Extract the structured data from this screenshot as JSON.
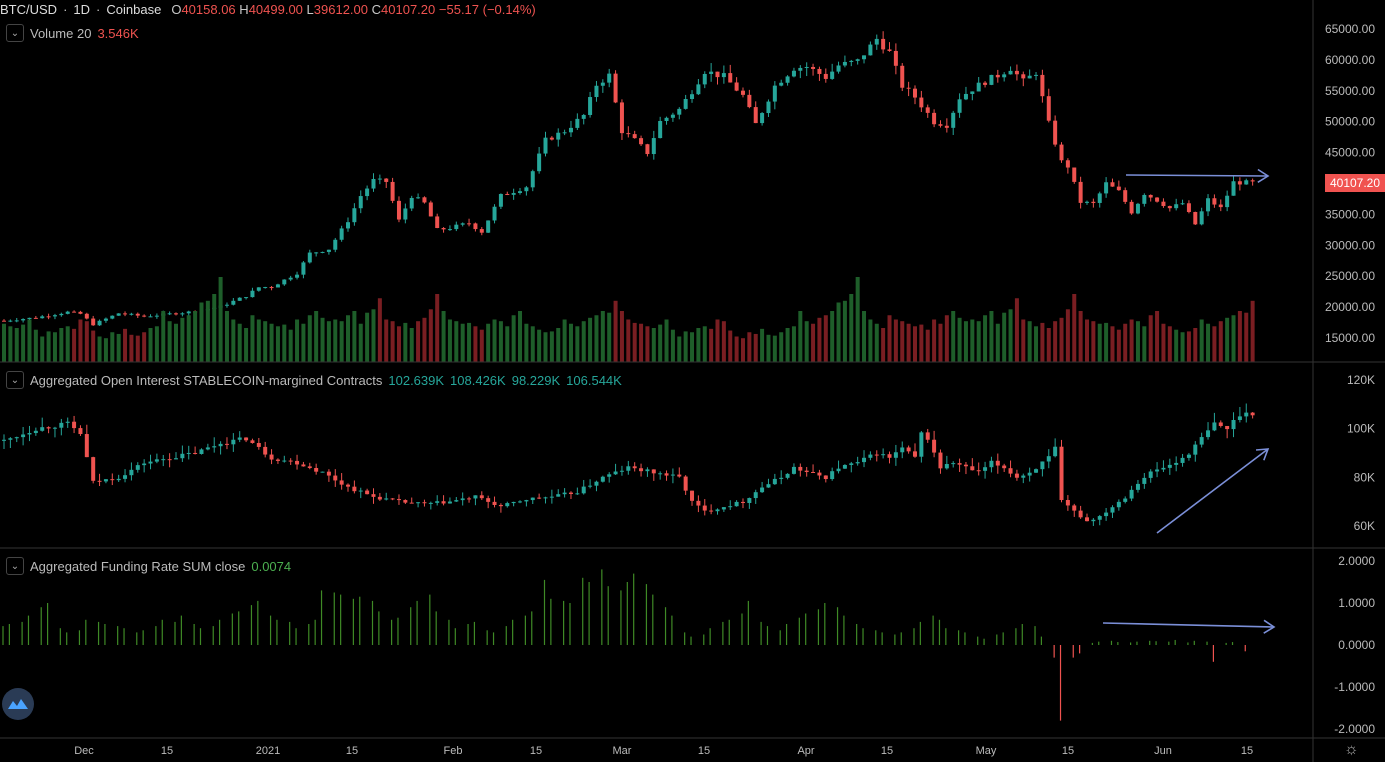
{
  "header": {
    "symbol": "BTC/USD",
    "sep1": "·",
    "interval": "1D",
    "sep2": "·",
    "exchange": "Coinbase",
    "o_label": "O",
    "o_value": "40158.06",
    "h_label": "H",
    "h_value": "40499.00",
    "l_label": "L",
    "l_value": "39612.00",
    "c_label": "C",
    "c_value": "40107.20",
    "change": "−55.17 (−0.14%)"
  },
  "volume_legend": {
    "label": "Volume 20",
    "value": "3.546K"
  },
  "oi_legend": {
    "label": "Aggregated Open Interest STABLECOIN-margined Contracts",
    "values": [
      "102.639K",
      "108.426K",
      "98.229K",
      "106.544K"
    ]
  },
  "funding_legend": {
    "label": "Aggregated Funding Rate SUM close",
    "value": "0.0074"
  },
  "last_price_tag": "40107.20",
  "colors": {
    "up": "#26a69a",
    "down": "#ef5350",
    "vol_up": "#1e5e2a",
    "vol_down": "#7a1e22",
    "funding": "#3f8a26",
    "arrow": "#7b8fd8",
    "price_tag": "#f05350"
  },
  "icons": {
    "collapse": "chevron-down-icon",
    "settings": "gear-icon",
    "logo": "wave-logo-icon"
  },
  "chart_data": [
    {
      "type": "candlestick",
      "title": "BTC/USD · 1D · Coinbase",
      "x": [
        "Dec",
        "15",
        "2021",
        "15",
        "Feb",
        "15",
        "Mar",
        "15",
        "Apr",
        "15",
        "May",
        "15",
        "Jun",
        "15"
      ],
      "y_ticks": [
        "65000.00",
        "60000.00",
        "55000.00",
        "50000.00",
        "45000.00",
        "40000.00",
        "35000.00",
        "30000.00",
        "25000.00",
        "20000.00",
        "15000.00"
      ],
      "ylim": [
        13000,
        70000
      ],
      "close_path": [
        [
          0,
          17800
        ],
        [
          5,
          18300
        ],
        [
          10,
          19200
        ],
        [
          12,
          18900
        ],
        [
          14,
          17200
        ],
        [
          18,
          19000
        ],
        [
          22,
          18500
        ],
        [
          26,
          18900
        ],
        [
          30,
          19300
        ],
        [
          34,
          20100
        ],
        [
          38,
          21800
        ],
        [
          40,
          23200
        ],
        [
          42,
          23300
        ],
        [
          46,
          25500
        ],
        [
          48,
          28700
        ],
        [
          51,
          29400
        ],
        [
          54,
          34000
        ],
        [
          56,
          38000
        ],
        [
          58,
          40500
        ],
        [
          60,
          40300
        ],
        [
          62,
          34000
        ],
        [
          64,
          38000
        ],
        [
          66,
          36800
        ],
        [
          68,
          32500
        ],
        [
          70,
          32800
        ],
        [
          73,
          33600
        ],
        [
          75,
          32200
        ],
        [
          78,
          38000
        ],
        [
          82,
          39500
        ],
        [
          85,
          47000
        ],
        [
          88,
          48500
        ],
        [
          91,
          51000
        ],
        [
          93,
          56000
        ],
        [
          95,
          57500
        ],
        [
          97,
          48500
        ],
        [
          99,
          47000
        ],
        [
          101,
          45000
        ],
        [
          103,
          50000
        ],
        [
          106,
          52000
        ],
        [
          108,
          55000
        ],
        [
          110,
          58200
        ],
        [
          113,
          57300
        ],
        [
          116,
          54200
        ],
        [
          118,
          49600
        ],
        [
          121,
          55800
        ],
        [
          124,
          58700
        ],
        [
          126,
          58900
        ],
        [
          129,
          57200
        ],
        [
          131,
          59100
        ],
        [
          134,
          59800
        ],
        [
          137,
          63400
        ],
        [
          139,
          61200
        ],
        [
          141,
          55800
        ],
        [
          143,
          54000
        ],
        [
          146,
          50000
        ],
        [
          148,
          49500
        ],
        [
          150,
          53900
        ],
        [
          152,
          55300
        ],
        [
          154,
          56500
        ],
        [
          156,
          57500
        ],
        [
          158,
          58700
        ],
        [
          160,
          56500
        ],
        [
          162,
          58000
        ],
        [
          164,
          49700
        ],
        [
          166,
          43500
        ],
        [
          167,
          42800
        ],
        [
          169,
          37000
        ],
        [
          171,
          36700
        ],
        [
          173,
          40000
        ],
        [
          175,
          38700
        ],
        [
          177,
          35400
        ],
        [
          179,
          38400
        ],
        [
          181,
          37300
        ],
        [
          183,
          36000
        ],
        [
          185,
          36800
        ],
        [
          187,
          33400
        ],
        [
          189,
          37400
        ],
        [
          191,
          36000
        ],
        [
          193,
          40200
        ],
        [
          196,
          40100
        ]
      ]
    },
    {
      "type": "bar",
      "title": "Volume 20",
      "y_range": "relative",
      "values": [
        0.45,
        0.42,
        0.4,
        0.44,
        0.5,
        0.38,
        0.3,
        0.36,
        0.35,
        0.4,
        0.42,
        0.39,
        0.5,
        0.48,
        0.37,
        0.3,
        0.28,
        0.35,
        0.33,
        0.39,
        0.32,
        0.31,
        0.35,
        0.4,
        0.42,
        0.6,
        0.48,
        0.45,
        0.52,
        0.55,
        0.6,
        0.7,
        0.72,
        0.8,
        1.0,
        0.6,
        0.5,
        0.45,
        0.4,
        0.55,
        0.5,
        0.48,
        0.45,
        0.42,
        0.44,
        0.38,
        0.5,
        0.45,
        0.55,
        0.6,
        0.52,
        0.48,
        0.5,
        0.48,
        0.55,
        0.6,
        0.45,
        0.58,
        0.62,
        0.75,
        0.5,
        0.48,
        0.42,
        0.46,
        0.4,
        0.48,
        0.52,
        0.62,
        0.8,
        0.6,
        0.5,
        0.48,
        0.45,
        0.46,
        0.42,
        0.38,
        0.45,
        0.5,
        0.48,
        0.42,
        0.55,
        0.6,
        0.45,
        0.42,
        0.38,
        0.35,
        0.36,
        0.4,
        0.5,
        0.45,
        0.42,
        0.48,
        0.52,
        0.55,
        0.6,
        0.58,
        0.72,
        0.6,
        0.5,
        0.46
      ]
    },
    {
      "type": "candlestick",
      "title": "Aggregated Open Interest STABLECOIN-margined Contracts",
      "y_ticks": [
        "120K",
        "100K",
        "80K",
        "60K"
      ],
      "ylim": [
        50000,
        125000
      ],
      "close_path": [
        [
          0,
          95000
        ],
        [
          5,
          100000
        ],
        [
          10,
          102000
        ],
        [
          12,
          98000
        ],
        [
          14,
          78000
        ],
        [
          18,
          80000
        ],
        [
          22,
          86000
        ],
        [
          26,
          88000
        ],
        [
          30,
          90000
        ],
        [
          34,
          94000
        ],
        [
          38,
          96000
        ],
        [
          42,
          88000
        ],
        [
          46,
          86000
        ],
        [
          50,
          82000
        ],
        [
          54,
          76000
        ],
        [
          58,
          72000
        ],
        [
          62,
          70000
        ],
        [
          66,
          69000
        ],
        [
          70,
          70000
        ],
        [
          74,
          72000
        ],
        [
          78,
          68000
        ],
        [
          82,
          71000
        ],
        [
          86,
          72000
        ],
        [
          90,
          74000
        ],
        [
          94,
          80000
        ],
        [
          98,
          84000
        ],
        [
          102,
          82000
        ],
        [
          106,
          80000
        ],
        [
          108,
          70000
        ],
        [
          110,
          66000
        ],
        [
          113,
          68000
        ],
        [
          116,
          70000
        ],
        [
          119,
          76000
        ],
        [
          122,
          80000
        ],
        [
          124,
          84000
        ],
        [
          126,
          82000
        ],
        [
          129,
          80000
        ],
        [
          131,
          84000
        ],
        [
          134,
          86000
        ],
        [
          137,
          90000
        ],
        [
          139,
          88000
        ],
        [
          141,
          92000
        ],
        [
          143,
          88000
        ],
        [
          144,
          98000
        ],
        [
          145,
          96000
        ],
        [
          147,
          84000
        ],
        [
          149,
          86000
        ],
        [
          151,
          84000
        ],
        [
          153,
          82000
        ],
        [
          155,
          86000
        ],
        [
          157,
          84000
        ],
        [
          159,
          80000
        ],
        [
          161,
          82000
        ],
        [
          163,
          86000
        ],
        [
          164,
          88000
        ],
        [
          165,
          92000
        ],
        [
          166,
          70000
        ],
        [
          168,
          66000
        ],
        [
          170,
          62000
        ],
        [
          172,
          64000
        ],
        [
          174,
          68000
        ],
        [
          176,
          72000
        ],
        [
          178,
          78000
        ],
        [
          180,
          82000
        ],
        [
          182,
          84000
        ],
        [
          184,
          86000
        ],
        [
          186,
          90000
        ],
        [
          188,
          96000
        ],
        [
          190,
          102000
        ],
        [
          192,
          100000
        ],
        [
          194,
          106000
        ],
        [
          196,
          106544
        ]
      ]
    },
    {
      "type": "bar",
      "title": "Aggregated Funding Rate SUM close",
      "y_ticks": [
        "2.0000",
        "1.0000",
        "0.0000",
        "-1.0000",
        "-2.0000"
      ],
      "ylim": [
        -2.1,
        2.1
      ],
      "values_sketch": [
        0.45,
        0.5,
        0.55,
        0.7,
        0.9,
        1.0,
        0.4,
        0.3,
        0.35,
        0.6,
        0.55,
        0.5,
        0.45,
        0.4,
        0.3,
        0.35,
        0.45,
        0.6,
        0.55,
        0.7,
        0.5,
        0.4,
        0.45,
        0.6,
        0.75,
        0.8,
        0.95,
        1.05,
        0.7,
        0.6,
        0.55,
        0.4,
        0.5,
        0.6,
        1.3,
        1.25,
        1.2,
        1.1,
        1.15,
        1.05,
        0.8,
        0.6,
        0.65,
        0.9,
        1.05,
        1.2,
        0.8,
        0.6,
        0.4,
        0.5,
        0.55,
        0.35,
        0.3,
        0.45,
        0.6,
        0.7,
        0.8,
        1.55,
        1.1,
        1.05,
        1.0,
        1.6,
        1.5,
        1.8,
        1.4,
        1.3,
        1.5,
        1.7,
        1.45,
        1.2,
        0.9,
        0.7,
        0.3,
        0.2,
        0.25,
        0.4,
        0.55,
        0.6,
        0.75,
        1.05,
        0.55,
        0.45,
        0.35,
        0.5,
        0.65,
        0.75,
        0.85,
        1.0,
        0.9,
        0.7,
        0.5,
        0.4,
        0.35,
        0.3,
        0.25,
        0.3,
        0.4,
        0.55,
        0.7,
        0.6,
        0.4,
        0.35,
        0.3,
        0.2,
        0.15,
        0.25,
        0.3,
        0.4,
        0.5,
        0.45,
        0.2,
        -0.3,
        -1.8,
        -0.3,
        -0.2,
        0.05,
        0.08,
        0.1,
        0.07,
        0.06,
        0.08,
        0.1,
        0.09,
        0.08,
        0.12,
        0.06,
        0.1,
        0.08,
        -0.4,
        0.05,
        0.07,
        -0.15,
        0.0
      ]
    }
  ]
}
